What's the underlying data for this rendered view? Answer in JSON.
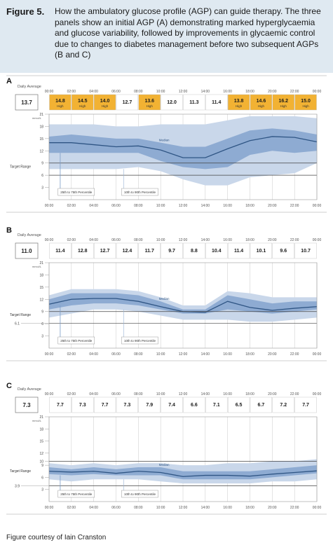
{
  "figure": {
    "label": "Figure 5.",
    "caption": "How the ambulatory glucose profile (AGP) can guide therapy. The three panels show an initial AGP (A) demonstrating marked hyperglycaemia and glucose variability, followed by improvements in glycaemic control due to changes to diabetes management before two subsequent AGPs (B and C)",
    "credit": "Figure courtesy of Iain Cranston"
  },
  "colors": {
    "header_bg": "#dfe9f1",
    "outer_band": "#c9d7ea",
    "inner_band": "#8eabd2",
    "median": "#2f5584",
    "high_cell": "#f2b233",
    "grid": "#9a9a9a"
  },
  "chart_data": [
    {
      "panel": "A",
      "type": "area",
      "daily_average_label": "Daily Average",
      "daily_average": "13.7",
      "time_ticks": [
        "00:00",
        "02:00",
        "04:00",
        "06:00",
        "08:00",
        "10:00",
        "12:00",
        "14:00",
        "16:00",
        "18:00",
        "20:00",
        "22:00",
        "00:00"
      ],
      "y_ticks": [
        "21",
        "18",
        "15",
        "12",
        "9",
        "6",
        "3"
      ],
      "y_unit": "mmol/L",
      "ylim": [
        0,
        21
      ],
      "target_range_label": "Target Range",
      "median_label": "Median",
      "legend": [
        "25th to 75th Percentile",
        "10th to 90th Percentile"
      ],
      "hourly_cells": [
        {
          "value": "14.8",
          "note": "High",
          "high": true
        },
        {
          "value": "14.5",
          "note": "High",
          "high": true
        },
        {
          "value": "14.0",
          "note": "High",
          "high": true
        },
        {
          "value": "12.7",
          "note": "",
          "high": false
        },
        {
          "value": "13.6",
          "note": "High",
          "high": true
        },
        {
          "value": "12.0",
          "note": "",
          "high": false
        },
        {
          "value": "11.3",
          "note": "",
          "high": false
        },
        {
          "value": "11.4",
          "note": "",
          "high": false
        },
        {
          "value": "13.8",
          "note": "High",
          "high": true
        },
        {
          "value": "14.6",
          "note": "High",
          "high": true
        },
        {
          "value": "16.2",
          "note": "High",
          "high": true
        },
        {
          "value": "15.0",
          "note": "High",
          "high": true
        }
      ],
      "x": [
        0,
        2,
        4,
        6,
        8,
        10,
        12,
        14,
        16,
        18,
        20,
        22,
        24
      ],
      "p10": [
        7.5,
        7.5,
        7.5,
        7.5,
        8.0,
        7.0,
        5.0,
        3.5,
        3.5,
        5.5,
        6.0,
        6.5,
        9.0
      ],
      "p25": [
        11.5,
        11.5,
        11.5,
        11.5,
        11.5,
        9.5,
        8.0,
        7.5,
        8.0,
        11.0,
        12.0,
        11.5,
        12.0
      ],
      "median": [
        14.0,
        14.0,
        13.5,
        13.0,
        13.2,
        12.2,
        10.3,
        10.3,
        12.5,
        14.5,
        15.5,
        15.3,
        14.2
      ],
      "p75": [
        15.5,
        16.0,
        15.5,
        15.0,
        15.0,
        14.0,
        13.0,
        13.0,
        15.0,
        17.0,
        17.5,
        17.0,
        16.0
      ],
      "p90": [
        18.5,
        18.5,
        18.5,
        18.0,
        18.0,
        18.5,
        18.5,
        18.5,
        19.5,
        20.5,
        20.5,
        20.5,
        20.0
      ],
      "target_range": [
        6,
        9
      ]
    },
    {
      "panel": "B",
      "type": "area",
      "daily_average_label": "Daily Average",
      "daily_average": "11.0",
      "time_ticks": [
        "00:00",
        "02:00",
        "04:00",
        "06:00",
        "08:00",
        "10:00",
        "12:00",
        "14:00",
        "16:00",
        "18:00",
        "20:00",
        "22:00",
        "00:00"
      ],
      "y_ticks": [
        "21",
        "18",
        "15",
        "12",
        "9",
        "6",
        "3"
      ],
      "y_unit": "mmol/L",
      "ylim": [
        0,
        21
      ],
      "target_range_label": "Target Range",
      "extra_tick": "6.1",
      "median_label": "Median",
      "legend": [
        "25th to 75th Percentile",
        "10th to 90th Percentile"
      ],
      "hourly_cells": [
        {
          "value": "11.4",
          "note": "",
          "high": false
        },
        {
          "value": "12.8",
          "note": "",
          "high": false
        },
        {
          "value": "12.7",
          "note": "",
          "high": false
        },
        {
          "value": "12.4",
          "note": "",
          "high": false
        },
        {
          "value": "11.7",
          "note": "",
          "high": false
        },
        {
          "value": "9.7",
          "note": "",
          "high": false
        },
        {
          "value": "8.8",
          "note": "",
          "high": false
        },
        {
          "value": "10.4",
          "note": "",
          "high": false
        },
        {
          "value": "11.4",
          "note": "",
          "high": false
        },
        {
          "value": "10.1",
          "note": "",
          "high": false
        },
        {
          "value": "9.6",
          "note": "",
          "high": false
        },
        {
          "value": "10.7",
          "note": "",
          "high": false
        }
      ],
      "x": [
        0,
        2,
        4,
        6,
        8,
        10,
        12,
        14,
        16,
        18,
        20,
        22,
        24
      ],
      "p10": [
        7.5,
        8.5,
        9.5,
        9.5,
        9.0,
        8.0,
        7.0,
        7.0,
        7.0,
        6.5,
        6.5,
        7.0,
        7.5
      ],
      "p25": [
        9.5,
        10.5,
        11.0,
        11.0,
        10.5,
        9.5,
        8.5,
        8.5,
        9.5,
        9.0,
        8.5,
        9.0,
        9.5
      ],
      "median": [
        10.8,
        12.0,
        12.2,
        12.2,
        11.5,
        10.2,
        9.0,
        8.8,
        11.5,
        10.0,
        9.3,
        9.8,
        10.2
      ],
      "p75": [
        12.0,
        13.5,
        13.5,
        13.5,
        13.0,
        11.5,
        9.5,
        9.5,
        13.0,
        12.0,
        11.0,
        11.5,
        11.5
      ],
      "p90": [
        13.0,
        14.5,
        14.5,
        14.5,
        14.0,
        12.5,
        10.5,
        10.5,
        14.0,
        13.5,
        12.5,
        12.5,
        12.5
      ],
      "target_range": [
        6.1,
        9
      ]
    },
    {
      "panel": "C",
      "type": "area",
      "daily_average_label": "Daily Average",
      "daily_average": "7.3",
      "time_ticks": [
        "00:00",
        "02:00",
        "04:00",
        "06:00",
        "08:00",
        "10:00",
        "12:00",
        "14:00",
        "16:00",
        "18:00",
        "20:00",
        "22:00",
        "00:00"
      ],
      "y_ticks": [
        "21",
        "18",
        "15",
        "12",
        "10",
        "9",
        "6",
        "3"
      ],
      "y_unit": "mmol/L",
      "ylim": [
        0,
        21
      ],
      "target_range_label": "Target Range",
      "extra_tick": "3.9",
      "median_label": "Median",
      "legend": [
        "25th to 75th Percentile",
        "10th to 90th Percentile"
      ],
      "hourly_cells": [
        {
          "value": "7.7",
          "note": "",
          "high": false
        },
        {
          "value": "7.3",
          "note": "",
          "high": false
        },
        {
          "value": "7.7",
          "note": "",
          "high": false
        },
        {
          "value": "7.3",
          "note": "",
          "high": false
        },
        {
          "value": "7.9",
          "note": "",
          "high": false
        },
        {
          "value": "7.4",
          "note": "",
          "high": false
        },
        {
          "value": "6.6",
          "note": "",
          "high": false
        },
        {
          "value": "7.1",
          "note": "",
          "high": false
        },
        {
          "value": "6.5",
          "note": "",
          "high": false
        },
        {
          "value": "6.7",
          "note": "",
          "high": false
        },
        {
          "value": "7.2",
          "note": "",
          "high": false
        },
        {
          "value": "7.7",
          "note": "",
          "high": false
        }
      ],
      "x": [
        0,
        2,
        4,
        6,
        8,
        10,
        12,
        14,
        16,
        18,
        20,
        22,
        24
      ],
      "p10": [
        5.5,
        5.0,
        5.5,
        5.5,
        5.5,
        5.0,
        4.5,
        4.5,
        4.5,
        4.5,
        5.0,
        5.0,
        5.5
      ],
      "p25": [
        6.8,
        6.5,
        6.8,
        6.5,
        6.5,
        6.5,
        5.5,
        5.5,
        5.5,
        5.5,
        6.0,
        6.5,
        7.0
      ],
      "median": [
        7.5,
        7.3,
        7.5,
        7.0,
        7.5,
        7.2,
        6.2,
        6.5,
        6.5,
        6.3,
        6.8,
        7.2,
        7.6
      ],
      "p75": [
        8.5,
        8.0,
        8.5,
        8.0,
        8.5,
        8.5,
        7.5,
        7.5,
        7.5,
        7.5,
        8.0,
        8.5,
        9.0
      ],
      "p90": [
        9.5,
        9.0,
        9.5,
        9.0,
        9.5,
        9.5,
        9.0,
        9.0,
        9.5,
        9.5,
        10.0,
        10.0,
        10.5
      ],
      "target_range": [
        3.9,
        10
      ]
    }
  ]
}
